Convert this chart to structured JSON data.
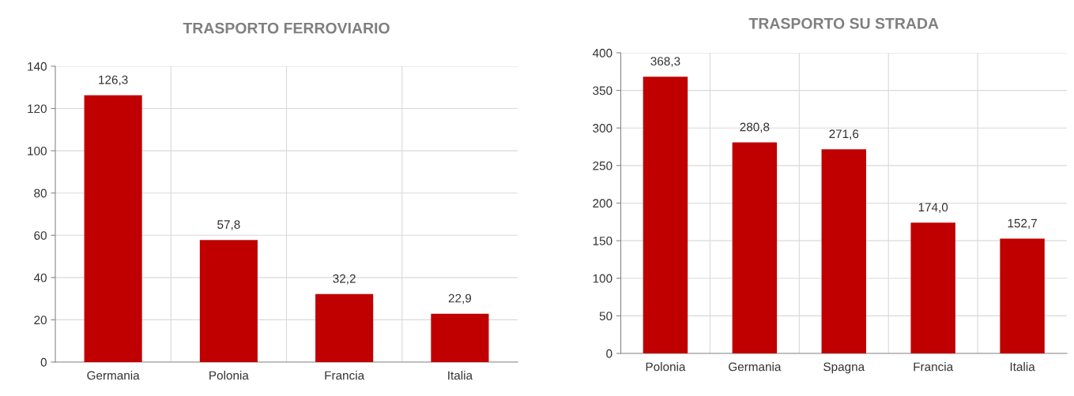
{
  "chart_data": [
    {
      "type": "bar",
      "title": "TRASPORTO FERROVIARIO",
      "categories": [
        "Germania",
        "Polonia",
        "Francia",
        "Italia"
      ],
      "values": [
        126.3,
        57.8,
        32.2,
        22.9
      ],
      "value_labels": [
        "126,3",
        "57,8",
        "32,2",
        "22,9"
      ],
      "color": "#c00000",
      "ylim": [
        0,
        140
      ],
      "yticks": [
        0,
        20,
        40,
        60,
        80,
        100,
        120,
        140
      ],
      "grid": true
    },
    {
      "type": "bar",
      "title": "TRASPORTO SU STRADA",
      "categories": [
        "Polonia",
        "Germania",
        "Spagna",
        "Francia",
        "Italia"
      ],
      "values": [
        368.3,
        280.8,
        271.6,
        174.0,
        152.7
      ],
      "value_labels": [
        "368,3",
        "280,8",
        "271,6",
        "174,0",
        "152,7"
      ],
      "color": "#c00000",
      "ylim": [
        0,
        400
      ],
      "yticks": [
        0,
        50,
        100,
        150,
        200,
        250,
        300,
        350,
        400
      ],
      "grid": true
    }
  ]
}
